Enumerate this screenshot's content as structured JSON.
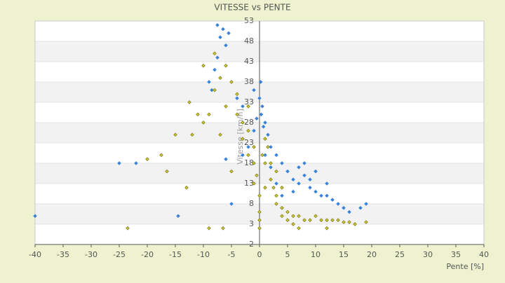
{
  "chart_data": {
    "type": "scatter",
    "title": "VITESSE vs PENTE",
    "x_label": "Pente [%]",
    "y_label": "Vitesse [km/h]",
    "xlim": [
      -40,
      40
    ],
    "xticks": [
      -40,
      -35,
      -30,
      -25,
      -20,
      -15,
      -10,
      -5,
      0,
      5,
      10,
      15,
      20,
      25,
      30,
      35,
      40
    ],
    "ylim": [
      -2,
      53
    ],
    "yticks": [
      53,
      48,
      43,
      38,
      33,
      28,
      23,
      18,
      13,
      8,
      3,
      -2
    ],
    "banded_grid": true,
    "series": [
      {
        "color": "#3a82d6",
        "x": [
          -40,
          -25,
          -22,
          -14.5,
          -7.5,
          -6.5,
          -5.5,
          -7,
          -6,
          -7.5,
          -8,
          -9,
          -8.5,
          -4,
          -3,
          -1,
          0,
          0.5,
          0.3,
          1,
          0.7,
          1.5,
          -0.5,
          -2,
          -3,
          -5,
          -6,
          2,
          3,
          4,
          5,
          6,
          7,
          8,
          9,
          10,
          11,
          12,
          13,
          14,
          15,
          16,
          18,
          19,
          7,
          8,
          10,
          4,
          6,
          3,
          2,
          1,
          -1,
          0.2,
          12,
          9
        ],
        "values": [
          5,
          18,
          18,
          5,
          52,
          51,
          50,
          49,
          47,
          44,
          41,
          38,
          36,
          34,
          32,
          36,
          34,
          32,
          30,
          28,
          27,
          25,
          29,
          22,
          20,
          8,
          19,
          22,
          20,
          18,
          16,
          14,
          13,
          15,
          12,
          11,
          10,
          10,
          9,
          8,
          7,
          6,
          7,
          8,
          17,
          18,
          16,
          10,
          11,
          13,
          17,
          20,
          26,
          38,
          13,
          14
        ]
      },
      {
        "color": "#7a7a08",
        "x": [
          -23.5,
          -20,
          -17.5,
          -16.5,
          -15,
          -13,
          -12.5,
          -12,
          -11,
          -10,
          -10,
          -9,
          -9,
          -8,
          -7,
          -6.5,
          -6,
          -5,
          -4,
          -4,
          -3,
          -3,
          -2,
          -2,
          -1,
          -1,
          -0.5,
          0,
          0,
          0,
          0,
          0.5,
          1,
          1,
          1.5,
          2,
          2.5,
          3,
          3,
          4,
          4,
          5,
          5,
          6,
          6,
          7,
          7,
          8,
          9,
          10,
          11,
          12,
          13,
          14,
          15,
          16,
          17,
          19,
          2,
          3,
          4,
          -5,
          -7,
          -8,
          -6,
          -2,
          -1,
          1,
          12
        ],
        "values": [
          2,
          19,
          20,
          16,
          25,
          12,
          33,
          25,
          30,
          28,
          42,
          30,
          2,
          36,
          39,
          2,
          42,
          38,
          35,
          30,
          28,
          24,
          26,
          20,
          22,
          18,
          15,
          10,
          6,
          2,
          4,
          20,
          24,
          18,
          22,
          14,
          12,
          10,
          8,
          7,
          5,
          6,
          4,
          5,
          3,
          2,
          5,
          4,
          4,
          5,
          4,
          4,
          4,
          4,
          3.5,
          3.5,
          3,
          3.5,
          18,
          16,
          12,
          16,
          25,
          45,
          32,
          32,
          13,
          12,
          2
        ]
      }
    ]
  }
}
